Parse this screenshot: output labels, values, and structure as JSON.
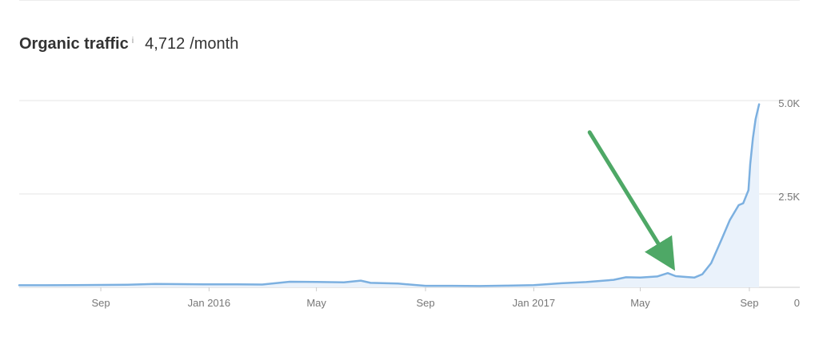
{
  "header": {
    "title": "Organic traffic",
    "info_icon": "i",
    "value": "4,712",
    "unit": "/month"
  },
  "colors": {
    "line": "#7cb0e0",
    "area": "#eaf2fb",
    "grid": "#e4e4e4",
    "axis": "#cccccc",
    "annotation_arrow": "#4ea866"
  },
  "chart_data": {
    "type": "area",
    "title": "",
    "xlabel": "",
    "ylabel": "",
    "ylim": [
      0,
      5000
    ],
    "yticks": [
      {
        "value": 5000,
        "label": "5.0K"
      },
      {
        "value": 2500,
        "label": "2.5K"
      },
      {
        "value": 0,
        "label": "0"
      }
    ],
    "xticks": [
      {
        "date": "2015-09-01",
        "label": "Sep"
      },
      {
        "date": "2016-01-01",
        "label": "Jan 2016"
      },
      {
        "date": "2016-05-01",
        "label": "May"
      },
      {
        "date": "2016-09-01",
        "label": "Sep"
      },
      {
        "date": "2017-01-01",
        "label": "Jan 2017"
      },
      {
        "date": "2017-05-01",
        "label": "May"
      },
      {
        "date": "2017-09-01",
        "label": "Sep"
      }
    ],
    "xlim": [
      "2015-06-01",
      "2017-09-20"
    ],
    "grid": true,
    "series": [
      {
        "points": [
          [
            "2015-06-01",
            55
          ],
          [
            "2015-07-01",
            55
          ],
          [
            "2015-08-01",
            60
          ],
          [
            "2015-09-01",
            65
          ],
          [
            "2015-10-01",
            70
          ],
          [
            "2015-11-01",
            90
          ],
          [
            "2015-12-01",
            85
          ],
          [
            "2016-01-01",
            80
          ],
          [
            "2016-02-01",
            80
          ],
          [
            "2016-03-01",
            75
          ],
          [
            "2016-04-01",
            150
          ],
          [
            "2016-05-01",
            145
          ],
          [
            "2016-06-01",
            135
          ],
          [
            "2016-06-20",
            180
          ],
          [
            "2016-07-01",
            120
          ],
          [
            "2016-08-01",
            100
          ],
          [
            "2016-09-01",
            40
          ],
          [
            "2016-10-01",
            40
          ],
          [
            "2016-11-01",
            35
          ],
          [
            "2016-12-01",
            45
          ],
          [
            "2017-01-01",
            60
          ],
          [
            "2017-02-01",
            110
          ],
          [
            "2017-03-01",
            140
          ],
          [
            "2017-04-01",
            200
          ],
          [
            "2017-04-15",
            270
          ],
          [
            "2017-05-01",
            260
          ],
          [
            "2017-05-20",
            290
          ],
          [
            "2017-06-01",
            380
          ],
          [
            "2017-06-10",
            300
          ],
          [
            "2017-06-20",
            280
          ],
          [
            "2017-07-01",
            260
          ],
          [
            "2017-07-10",
            350
          ],
          [
            "2017-07-20",
            650
          ],
          [
            "2017-08-01",
            1300
          ],
          [
            "2017-08-10",
            1800
          ],
          [
            "2017-08-20",
            2200
          ],
          [
            "2017-08-25",
            2250
          ],
          [
            "2017-08-31",
            2600
          ],
          [
            "2017-09-02",
            3300
          ],
          [
            "2017-09-05",
            4000
          ],
          [
            "2017-09-08",
            4500
          ],
          [
            "2017-09-12",
            4900
          ]
        ]
      }
    ],
    "annotation": {
      "type": "arrow",
      "from": [
        "2017-03-05",
        4150
      ],
      "to": [
        "2017-06-07",
        700
      ]
    }
  }
}
